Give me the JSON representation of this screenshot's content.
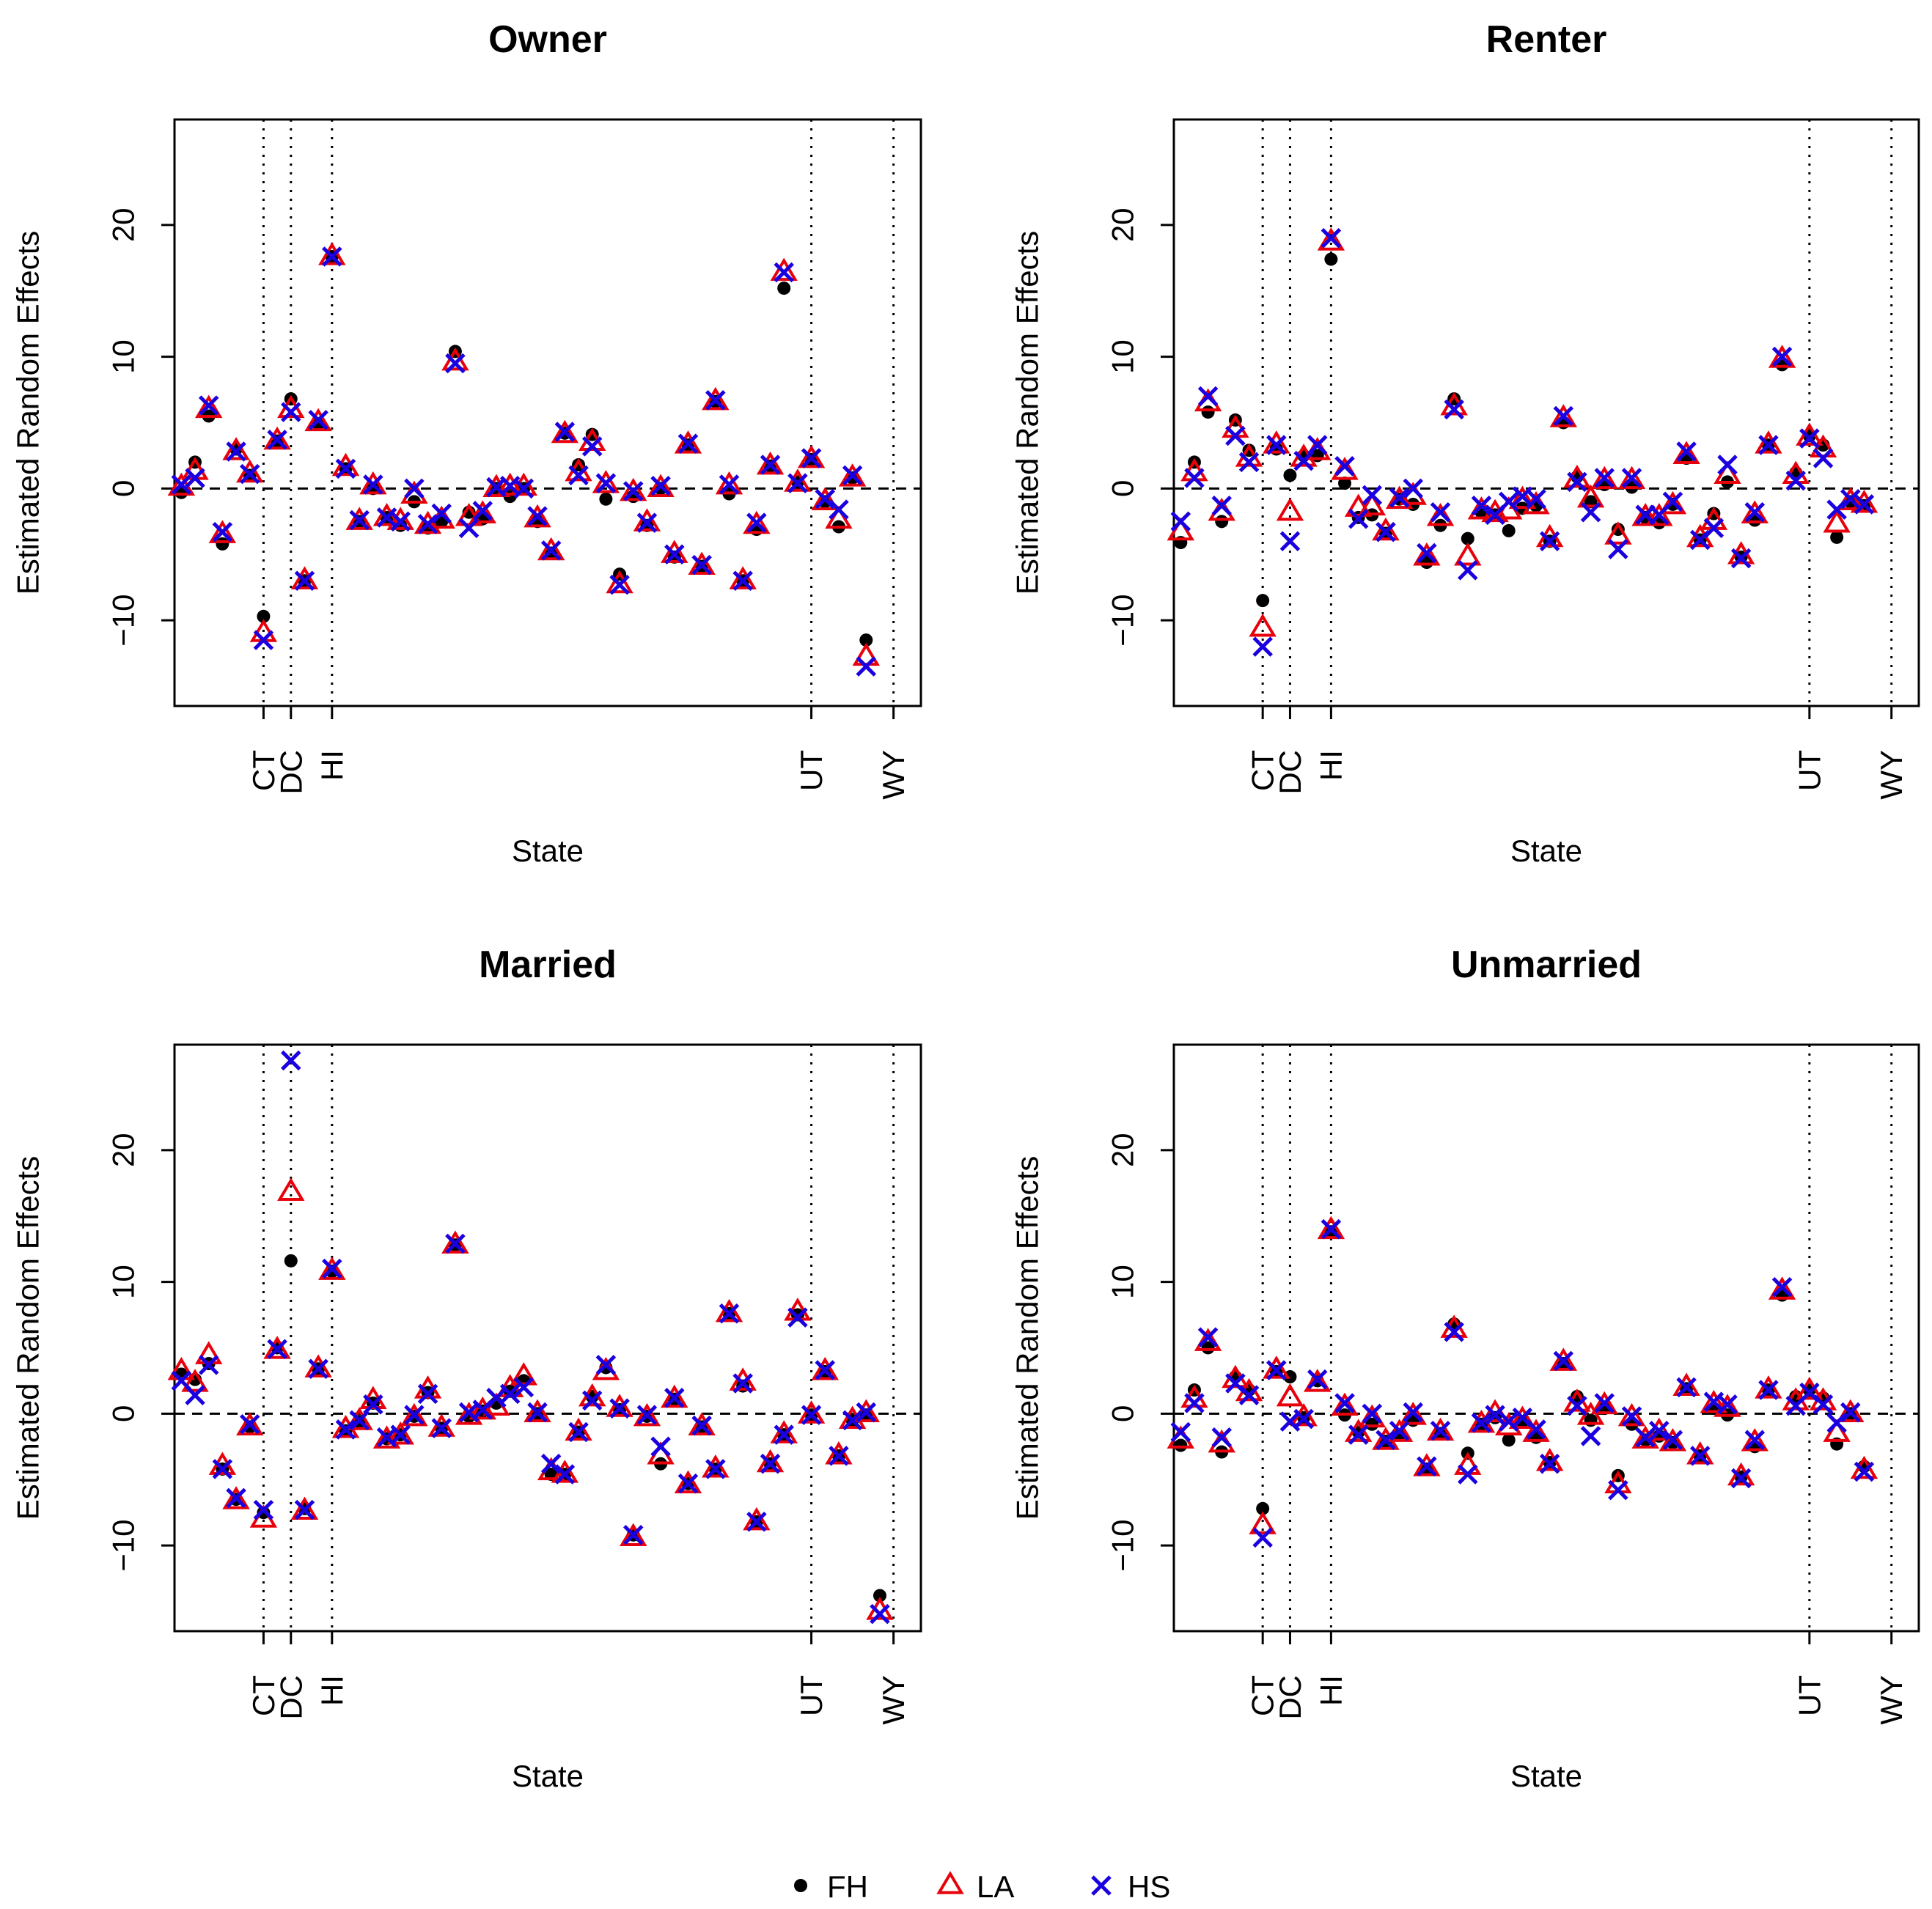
{
  "legend": {
    "items": [
      {
        "label": "FH",
        "symbol": "dot",
        "color": "#000000"
      },
      {
        "label": "LA",
        "symbol": "triangle",
        "color": "#e8000b"
      },
      {
        "label": "HS",
        "symbol": "cross",
        "color": "#1a00e0"
      }
    ]
  },
  "chart_data": [
    {
      "type": "scatter",
      "title": "Owner",
      "xlabel": "State",
      "ylabel": "Estimated Random Effects",
      "ylim": [
        -16.5,
        28
      ],
      "yticks": [
        -10,
        0,
        10,
        20
      ],
      "xlim": [
        -0.5,
        54
      ],
      "highlight_states": [
        {
          "label": "CT",
          "x": 6
        },
        {
          "label": "DC",
          "x": 8
        },
        {
          "label": "HI",
          "x": 11
        },
        {
          "label": "UT",
          "x": 46
        },
        {
          "label": "WY",
          "x": 52
        }
      ],
      "reference_line": 0,
      "series": [
        {
          "name": "FH",
          "values": [
            -0.3,
            2.0,
            5.5,
            -4.2,
            3.0,
            1.0,
            -9.7,
            3.6,
            6.8,
            -7.0,
            4.9,
            17.6,
            1.5,
            -2.5,
            0.0,
            -2.2,
            -2.8,
            -1.0,
            -3.0,
            -2.5,
            10.4,
            -1.8,
            -2.3,
            0.0,
            -0.6,
            0.0,
            -2.5,
            -4.9,
            4.2,
            1.8,
            4.1,
            -0.8,
            -6.5,
            -0.6,
            -2.8,
            0.0,
            -5.2,
            3.3,
            -5.9,
            6.6,
            -0.4,
            -7.0,
            -3.1,
            1.7,
            15.2,
            0.5,
            2.2,
            -1.0,
            -2.9,
            0.8,
            -11.5
          ]
        },
        {
          "name": "LA",
          "values": [
            0.1,
            1.3,
            6.0,
            -3.5,
            2.8,
            1.1,
            -11.0,
            3.6,
            6.0,
            -7.0,
            5.0,
            17.6,
            1.6,
            -2.5,
            0.2,
            -2.2,
            -2.5,
            -0.5,
            -2.8,
            -2.4,
            9.6,
            -2.2,
            -2.0,
            0.0,
            0.1,
            0.1,
            -2.3,
            -4.8,
            4.1,
            1.2,
            3.5,
            0.3,
            -7.3,
            -0.3,
            -2.6,
            0.0,
            -5.0,
            3.3,
            -5.9,
            6.6,
            0.2,
            -7.0,
            -2.8,
            1.7,
            16.4,
            0.4,
            2.2,
            -1.0,
            -2.4,
            0.8,
            -12.8
          ]
        },
        {
          "name": "HS",
          "values": [
            0.3,
            0.8,
            6.3,
            -3.3,
            2.8,
            1.1,
            -11.5,
            3.7,
            5.8,
            -7.0,
            5.2,
            17.6,
            1.5,
            -2.4,
            0.3,
            -2.2,
            -2.5,
            0.0,
            -2.7,
            -1.9,
            9.5,
            -3.0,
            -1.7,
            0.1,
            0.2,
            0.0,
            -2.1,
            -4.7,
            4.3,
            1.0,
            3.2,
            0.4,
            -7.3,
            -0.2,
            -2.6,
            0.2,
            -5.0,
            3.4,
            -5.8,
            6.7,
            0.3,
            -7.0,
            -2.6,
            1.8,
            16.4,
            0.4,
            2.3,
            -0.8,
            -1.6,
            1.0,
            -13.5
          ]
        }
      ]
    },
    {
      "type": "scatter",
      "title": "Renter",
      "xlabel": "State",
      "ylabel": "Estimated Random Effects",
      "ylim": [
        -16.5,
        28
      ],
      "yticks": [
        -10,
        0,
        10,
        20
      ],
      "xlim": [
        -0.5,
        54
      ],
      "highlight_states": [
        {
          "label": "CT",
          "x": 6
        },
        {
          "label": "DC",
          "x": 8
        },
        {
          "label": "HI",
          "x": 11
        },
        {
          "label": "UT",
          "x": 46
        },
        {
          "label": "WY",
          "x": 52
        }
      ],
      "reference_line": 0,
      "series": [
        {
          "name": "FH",
          "values": [
            -4.1,
            2.0,
            5.8,
            -2.5,
            5.2,
            2.9,
            -8.5,
            3.0,
            1.0,
            2.5,
            2.5,
            17.4,
            0.4,
            -2.2,
            -2.0,
            -3.4,
            -0.8,
            -1.2,
            -5.6,
            -2.8,
            6.8,
            -3.8,
            -1.8,
            -2.0,
            -3.2,
            -1.5,
            -1.3,
            -4.0,
            5.0,
            0.9,
            -1.0,
            0.3,
            -3.1,
            0.1,
            -2.2,
            -2.6,
            -1.2,
            2.3,
            -3.9,
            -1.9,
            0.5,
            -5.2,
            -2.4,
            3.3,
            9.4,
            1.2,
            4.0,
            3.3,
            -3.7,
            -1.0,
            -1.3
          ]
        },
        {
          "name": "LA",
          "values": [
            -3.3,
            1.2,
            6.5,
            -1.8,
            4.5,
            2.3,
            -10.6,
            3.3,
            -1.8,
            2.3,
            2.8,
            18.7,
            1.3,
            -1.5,
            -1.4,
            -3.3,
            -0.9,
            -0.6,
            -5.2,
            -2.2,
            6.2,
            -5.2,
            -1.7,
            -1.9,
            -1.7,
            -0.9,
            -1.3,
            -3.8,
            5.3,
            0.7,
            -0.8,
            0.6,
            -3.6,
            0.6,
            -2.2,
            -2.2,
            -1.3,
            2.5,
            -3.8,
            -2.5,
            1.0,
            -5.1,
            -2.0,
            3.3,
            9.8,
            1.0,
            3.9,
            3.0,
            -2.7,
            -1.0,
            -1.2
          ]
        },
        {
          "name": "HS",
          "values": [
            -2.5,
            0.8,
            7.0,
            -1.3,
            4.0,
            2.0,
            -12.0,
            3.3,
            -4.0,
            2.1,
            3.3,
            19.0,
            1.7,
            -2.3,
            -0.5,
            -3.3,
            -0.7,
            0.0,
            -4.9,
            -1.8,
            6.0,
            -6.2,
            -1.3,
            -2.0,
            -1.0,
            -0.6,
            -0.8,
            -4.0,
            5.5,
            0.5,
            -1.8,
            0.8,
            -4.6,
            0.8,
            -2.0,
            -2.0,
            -1.0,
            2.8,
            -3.9,
            -3.0,
            1.8,
            -5.3,
            -1.8,
            3.3,
            10.0,
            0.6,
            3.8,
            2.3,
            -1.6,
            -0.8,
            -1.2
          ]
        }
      ]
    },
    {
      "type": "scatter",
      "title": "Married",
      "xlabel": "State",
      "ylabel": "Estimated Random Effects",
      "ylim": [
        -16.5,
        28
      ],
      "yticks": [
        -10,
        0,
        10,
        20
      ],
      "xlim": [
        -0.5,
        54
      ],
      "highlight_states": [
        {
          "label": "CT",
          "x": 6
        },
        {
          "label": "DC",
          "x": 8
        },
        {
          "label": "HI",
          "x": 11
        },
        {
          "label": "UT",
          "x": 46
        },
        {
          "label": "WY",
          "x": 52
        }
      ],
      "reference_line": 0,
      "series": [
        {
          "name": "FH",
          "values": [
            3.0,
            2.6,
            3.8,
            -4.2,
            -6.5,
            -1.0,
            -7.5,
            5.0,
            11.6,
            -7.2,
            3.4,
            10.8,
            -1.3,
            -0.6,
            0.8,
            -1.9,
            -1.6,
            -0.2,
            1.6,
            -1.1,
            12.8,
            -0.2,
            0.2,
            0.8,
            1.7,
            2.5,
            0.0,
            -4.6,
            -4.6,
            -1.4,
            1.3,
            3.5,
            0.3,
            -9.2,
            -0.2,
            -3.8,
            1.1,
            -5.3,
            -1.0,
            -4.2,
            7.6,
            2.1,
            -8.2,
            -3.8,
            -1.6,
            7.5,
            -0.1,
            3.2,
            -3.2,
            -0.5,
            -0.1,
            -13.8
          ]
        },
        {
          "name": "LA",
          "values": [
            3.2,
            2.3,
            4.4,
            -4.0,
            -6.6,
            -1.0,
            -8.0,
            4.8,
            16.8,
            -7.4,
            3.4,
            10.8,
            -1.2,
            -0.6,
            1.0,
            -2.0,
            -1.7,
            -0.3,
            1.8,
            -1.1,
            12.8,
            -0.2,
            0.2,
            0.5,
            1.9,
            2.8,
            0.0,
            -4.4,
            -4.6,
            -1.4,
            1.2,
            3.2,
            0.4,
            -9.4,
            -0.3,
            -3.2,
            1.1,
            -5.4,
            -1.0,
            -4.2,
            7.6,
            2.4,
            -8.2,
            -3.8,
            -1.6,
            7.7,
            -0.1,
            3.2,
            -3.2,
            -0.5,
            0.0,
            -15.0
          ]
        },
        {
          "name": "HS",
          "values": [
            2.5,
            1.4,
            3.7,
            -4.2,
            -6.4,
            -0.8,
            -7.3,
            4.9,
            26.8,
            -7.3,
            3.4,
            11.0,
            -1.2,
            -0.5,
            0.7,
            -1.8,
            -1.6,
            -0.1,
            1.5,
            -1.1,
            12.9,
            0.1,
            0.3,
            1.2,
            1.5,
            2.0,
            0.1,
            -3.8,
            -4.6,
            -1.4,
            1.0,
            3.7,
            0.4,
            -9.2,
            -0.1,
            -2.5,
            1.2,
            -5.3,
            -0.9,
            -4.2,
            7.6,
            2.3,
            -8.2,
            -3.8,
            -1.6,
            7.3,
            -0.1,
            3.3,
            -3.2,
            -0.5,
            0.1,
            -15.2
          ]
        }
      ]
    },
    {
      "type": "scatter",
      "title": "Unmarried",
      "xlabel": "State",
      "ylabel": "Estimated Random Effects",
      "ylim": [
        -16.5,
        28
      ],
      "yticks": [
        -10,
        0,
        10,
        20
      ],
      "xlim": [
        -0.5,
        54
      ],
      "highlight_states": [
        {
          "label": "CT",
          "x": 6
        },
        {
          "label": "DC",
          "x": 8
        },
        {
          "label": "HI",
          "x": 11
        },
        {
          "label": "UT",
          "x": 46
        },
        {
          "label": "WY",
          "x": 52
        }
      ],
      "reference_line": 0,
      "series": [
        {
          "name": "FH",
          "values": [
            -2.4,
            1.8,
            5.0,
            -2.9,
            2.8,
            1.8,
            -7.2,
            3.2,
            2.8,
            -0.3,
            2.5,
            13.8,
            -0.1,
            -1.4,
            -0.8,
            -2.1,
            -1.6,
            -0.5,
            -4.2,
            -1.5,
            6.8,
            -3.0,
            -0.8,
            -0.3,
            -2.0,
            -0.6,
            -1.8,
            -3.7,
            3.8,
            1.3,
            -0.5,
            0.4,
            -4.7,
            -0.8,
            -2.0,
            -1.7,
            -2.2,
            1.9,
            -3.2,
            0.4,
            -0.1,
            -4.8,
            -2.5,
            1.8,
            9.0,
            1.3,
            1.8,
            1.2,
            -2.3,
            0.0,
            -4.0
          ]
        },
        {
          "name": "LA",
          "values": [
            -2.0,
            1.1,
            5.4,
            -2.3,
            2.6,
            1.6,
            -8.5,
            3.3,
            1.2,
            -0.3,
            2.3,
            13.9,
            0.5,
            -1.5,
            -0.4,
            -2.1,
            -1.5,
            -0.2,
            -4.1,
            -1.4,
            6.4,
            -4.0,
            -0.8,
            0.0,
            -1.0,
            -0.5,
            -1.5,
            -3.7,
            3.9,
            0.8,
            -0.2,
            0.6,
            -5.4,
            -0.3,
            -2.0,
            -1.4,
            -2.2,
            2.0,
            -3.2,
            0.7,
            0.4,
            -4.8,
            -2.2,
            1.8,
            9.3,
            0.9,
            1.7,
            0.9,
            -1.5,
            0.0,
            -4.3
          ]
        },
        {
          "name": "HS",
          "values": [
            -1.4,
            0.8,
            5.8,
            -1.8,
            2.3,
            1.4,
            -9.4,
            3.3,
            -0.6,
            -0.4,
            2.6,
            14.0,
            0.8,
            -1.6,
            0.0,
            -2.0,
            -1.3,
            0.1,
            -4.0,
            -1.3,
            6.2,
            -4.6,
            -0.7,
            -0.1,
            -0.6,
            -0.3,
            -1.2,
            -3.8,
            4.0,
            0.6,
            -1.7,
            0.8,
            -5.8,
            -0.2,
            -1.8,
            -1.3,
            -2.0,
            2.0,
            -3.2,
            0.9,
            0.7,
            -4.9,
            -2.0,
            1.8,
            9.6,
            0.6,
            1.6,
            0.7,
            -0.7,
            0.1,
            -4.4
          ]
        }
      ]
    }
  ]
}
